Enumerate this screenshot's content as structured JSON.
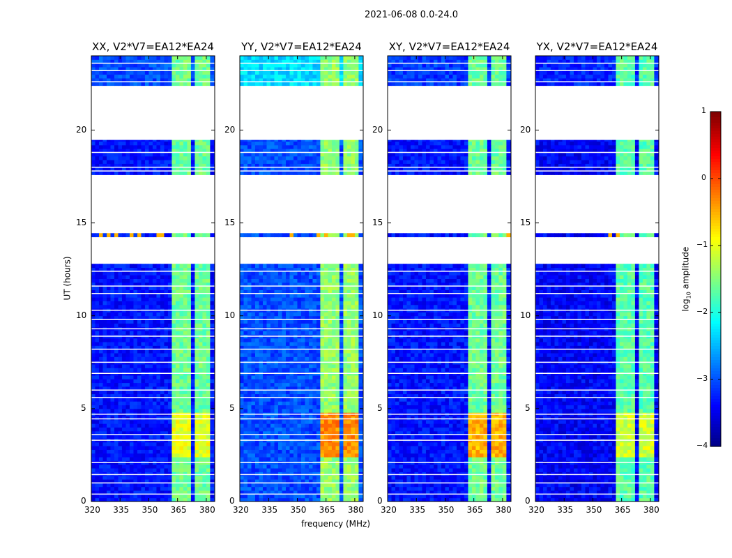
{
  "chart_data": {
    "type": "heatmap",
    "suptitle": "2021-06-08 0.0-24.0",
    "xlabel": "frequency (MHz)",
    "ylabel": "UT (hours)",
    "xlim": [
      320,
      384.4
    ],
    "ylim": [
      0,
      24
    ],
    "xticks": [
      320,
      335,
      350,
      365,
      380
    ],
    "yticks": [
      0,
      5,
      10,
      15,
      20
    ],
    "data_time_ranges": [
      [
        0,
        12.8
      ],
      [
        14.25,
        14.45
      ],
      [
        17.6,
        19.5
      ],
      [
        22.4,
        24
      ]
    ],
    "flagged_rows": [
      0.4,
      1.0,
      1.45,
      2.1,
      3.3,
      3.6,
      4.45,
      4.7,
      5.6,
      6.0,
      6.9,
      7.5,
      8.2,
      8.9,
      9.3,
      9.8,
      10.3,
      11.2,
      11.6,
      12.4,
      17.8,
      18.0,
      18.8,
      19.5,
      22.6,
      23.2,
      23.6
    ],
    "rfi_bands_mhz": [
      [
        361.5,
        367
      ],
      [
        368,
        372.5
      ],
      [
        373.5,
        377
      ],
      [
        378,
        381
      ]
    ],
    "enhanced_time_range": [
      2.3,
      4.7
    ],
    "panels": [
      {
        "title": "XX, V2*V7=EA12*EA24",
        "base_level": -3.3,
        "band_level": -1.6,
        "enhanced_band_level": -1.0,
        "top_base_level": -3.0
      },
      {
        "title": "YY, V2*V7=EA12*EA24",
        "base_level": -3.0,
        "band_level": -1.4,
        "enhanced_band_level": -0.3,
        "top_base_level": -2.3
      },
      {
        "title": "XY, V2*V7=EA12*EA24",
        "base_level": -3.3,
        "band_level": -1.6,
        "enhanced_band_level": -0.5,
        "top_base_level": -3.1
      },
      {
        "title": "YX, V2*V7=EA12*EA24",
        "base_level": -3.4,
        "band_level": -1.7,
        "enhanced_band_level": -1.1,
        "top_base_level": -3.2
      }
    ],
    "colorbar": {
      "label": "log10 amplitude",
      "label_main": "log",
      "label_sub": "10",
      "label_rest": " amplitude",
      "range": [
        -4,
        1
      ],
      "ticks": [
        "1",
        "0",
        "−1",
        "−2",
        "−3",
        "−4"
      ],
      "colormap": "jet"
    }
  }
}
